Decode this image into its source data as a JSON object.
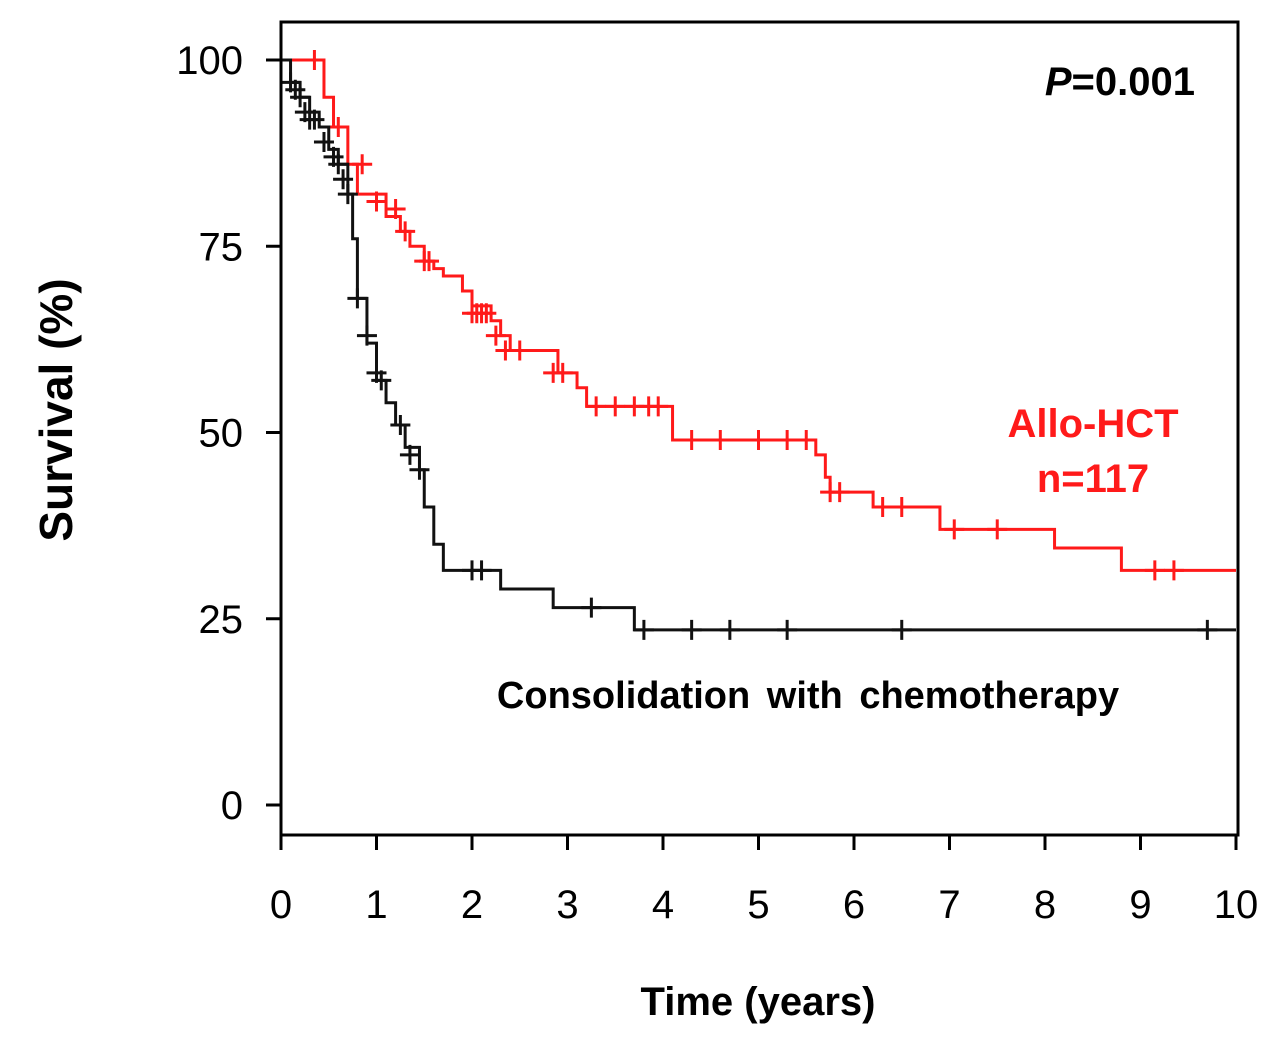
{
  "chart_data": {
    "type": "line",
    "subtype": "kaplan-meier",
    "title": "",
    "xlabel": "Time (years)",
    "ylabel": "Survival (%)",
    "xlim": [
      0,
      10
    ],
    "ylim": [
      0,
      100
    ],
    "xticks": [
      "0",
      "1",
      "2",
      "3",
      "4",
      "5",
      "6",
      "7",
      "8",
      "9",
      "10"
    ],
    "yticks": [
      "0",
      "25",
      "50",
      "75",
      "100"
    ],
    "grid": false,
    "annotations": {
      "p_label": "P",
      "p_value": "=0.001",
      "allo_label": "Allo-HCT",
      "allo_n": "n=117",
      "chemo_label": "Consolidation with chemotherapy"
    },
    "series": [
      {
        "name": "Allo-HCT",
        "color": "#ff1a1a",
        "steps": [
          [
            0,
            100
          ],
          [
            0.45,
            95
          ],
          [
            0.55,
            91
          ],
          [
            0.7,
            86
          ],
          [
            0.8,
            82
          ],
          [
            1.1,
            79
          ],
          [
            1.25,
            77
          ],
          [
            1.35,
            75
          ],
          [
            1.5,
            73
          ],
          [
            1.6,
            72
          ],
          [
            1.7,
            71
          ],
          [
            1.9,
            69
          ],
          [
            2.0,
            67
          ],
          [
            2.2,
            65
          ],
          [
            2.3,
            63
          ],
          [
            2.4,
            61
          ],
          [
            2.9,
            58
          ],
          [
            3.1,
            56
          ],
          [
            3.2,
            53.5
          ],
          [
            4.1,
            49
          ],
          [
            5.6,
            47
          ],
          [
            5.7,
            44
          ],
          [
            5.75,
            42
          ],
          [
            6.2,
            40
          ],
          [
            6.9,
            37
          ],
          [
            8.1,
            34.5
          ],
          [
            8.8,
            31.5
          ],
          [
            10,
            31.5
          ]
        ],
        "censored": [
          [
            0.35,
            100
          ],
          [
            0.6,
            91
          ],
          [
            0.85,
            86
          ],
          [
            1.0,
            81
          ],
          [
            1.2,
            80
          ],
          [
            1.3,
            77
          ],
          [
            1.5,
            73
          ],
          [
            1.55,
            73
          ],
          [
            2.0,
            66
          ],
          [
            2.05,
            66
          ],
          [
            2.1,
            66
          ],
          [
            2.15,
            66
          ],
          [
            2.25,
            63
          ],
          [
            2.35,
            61
          ],
          [
            2.5,
            61
          ],
          [
            2.85,
            58
          ],
          [
            2.95,
            58
          ],
          [
            3.3,
            53.5
          ],
          [
            3.5,
            53.5
          ],
          [
            3.7,
            53.5
          ],
          [
            3.85,
            53.5
          ],
          [
            3.95,
            53.5
          ],
          [
            4.3,
            49
          ],
          [
            4.6,
            49
          ],
          [
            5.0,
            49
          ],
          [
            5.3,
            49
          ],
          [
            5.5,
            49
          ],
          [
            5.75,
            42
          ],
          [
            5.85,
            42
          ],
          [
            6.3,
            40
          ],
          [
            6.5,
            40
          ],
          [
            7.05,
            37
          ],
          [
            7.5,
            37
          ],
          [
            9.15,
            31.5
          ],
          [
            9.35,
            31.5
          ]
        ]
      },
      {
        "name": "Consolidation with chemotherapy",
        "color": "#111111",
        "steps": [
          [
            0,
            100
          ],
          [
            0.1,
            97
          ],
          [
            0.2,
            95
          ],
          [
            0.3,
            93
          ],
          [
            0.4,
            91
          ],
          [
            0.5,
            88
          ],
          [
            0.6,
            86
          ],
          [
            0.7,
            82
          ],
          [
            0.75,
            76
          ],
          [
            0.8,
            68
          ],
          [
            0.9,
            62
          ],
          [
            1.0,
            57
          ],
          [
            1.1,
            54
          ],
          [
            1.2,
            51
          ],
          [
            1.3,
            48
          ],
          [
            1.45,
            45
          ],
          [
            1.5,
            40
          ],
          [
            1.6,
            35
          ],
          [
            1.7,
            31.5
          ],
          [
            2.3,
            29
          ],
          [
            2.85,
            26.5
          ],
          [
            3.7,
            23.5
          ],
          [
            10,
            23.5
          ]
        ],
        "censored": [
          [
            0.1,
            97
          ],
          [
            0.15,
            96
          ],
          [
            0.2,
            95
          ],
          [
            0.25,
            93
          ],
          [
            0.3,
            92
          ],
          [
            0.35,
            92
          ],
          [
            0.45,
            89
          ],
          [
            0.55,
            87
          ],
          [
            0.6,
            86
          ],
          [
            0.65,
            84
          ],
          [
            0.7,
            82
          ],
          [
            0.8,
            68
          ],
          [
            0.9,
            63
          ],
          [
            1.0,
            58
          ],
          [
            1.05,
            57
          ],
          [
            1.25,
            51
          ],
          [
            1.35,
            47
          ],
          [
            1.45,
            45
          ],
          [
            2.0,
            31.5
          ],
          [
            2.1,
            31.5
          ],
          [
            3.25,
            26.5
          ],
          [
            3.8,
            23.5
          ],
          [
            4.3,
            23.5
          ],
          [
            4.7,
            23.5
          ],
          [
            5.3,
            23.5
          ],
          [
            6.5,
            23.5
          ],
          [
            9.7,
            23.5
          ]
        ]
      }
    ]
  }
}
